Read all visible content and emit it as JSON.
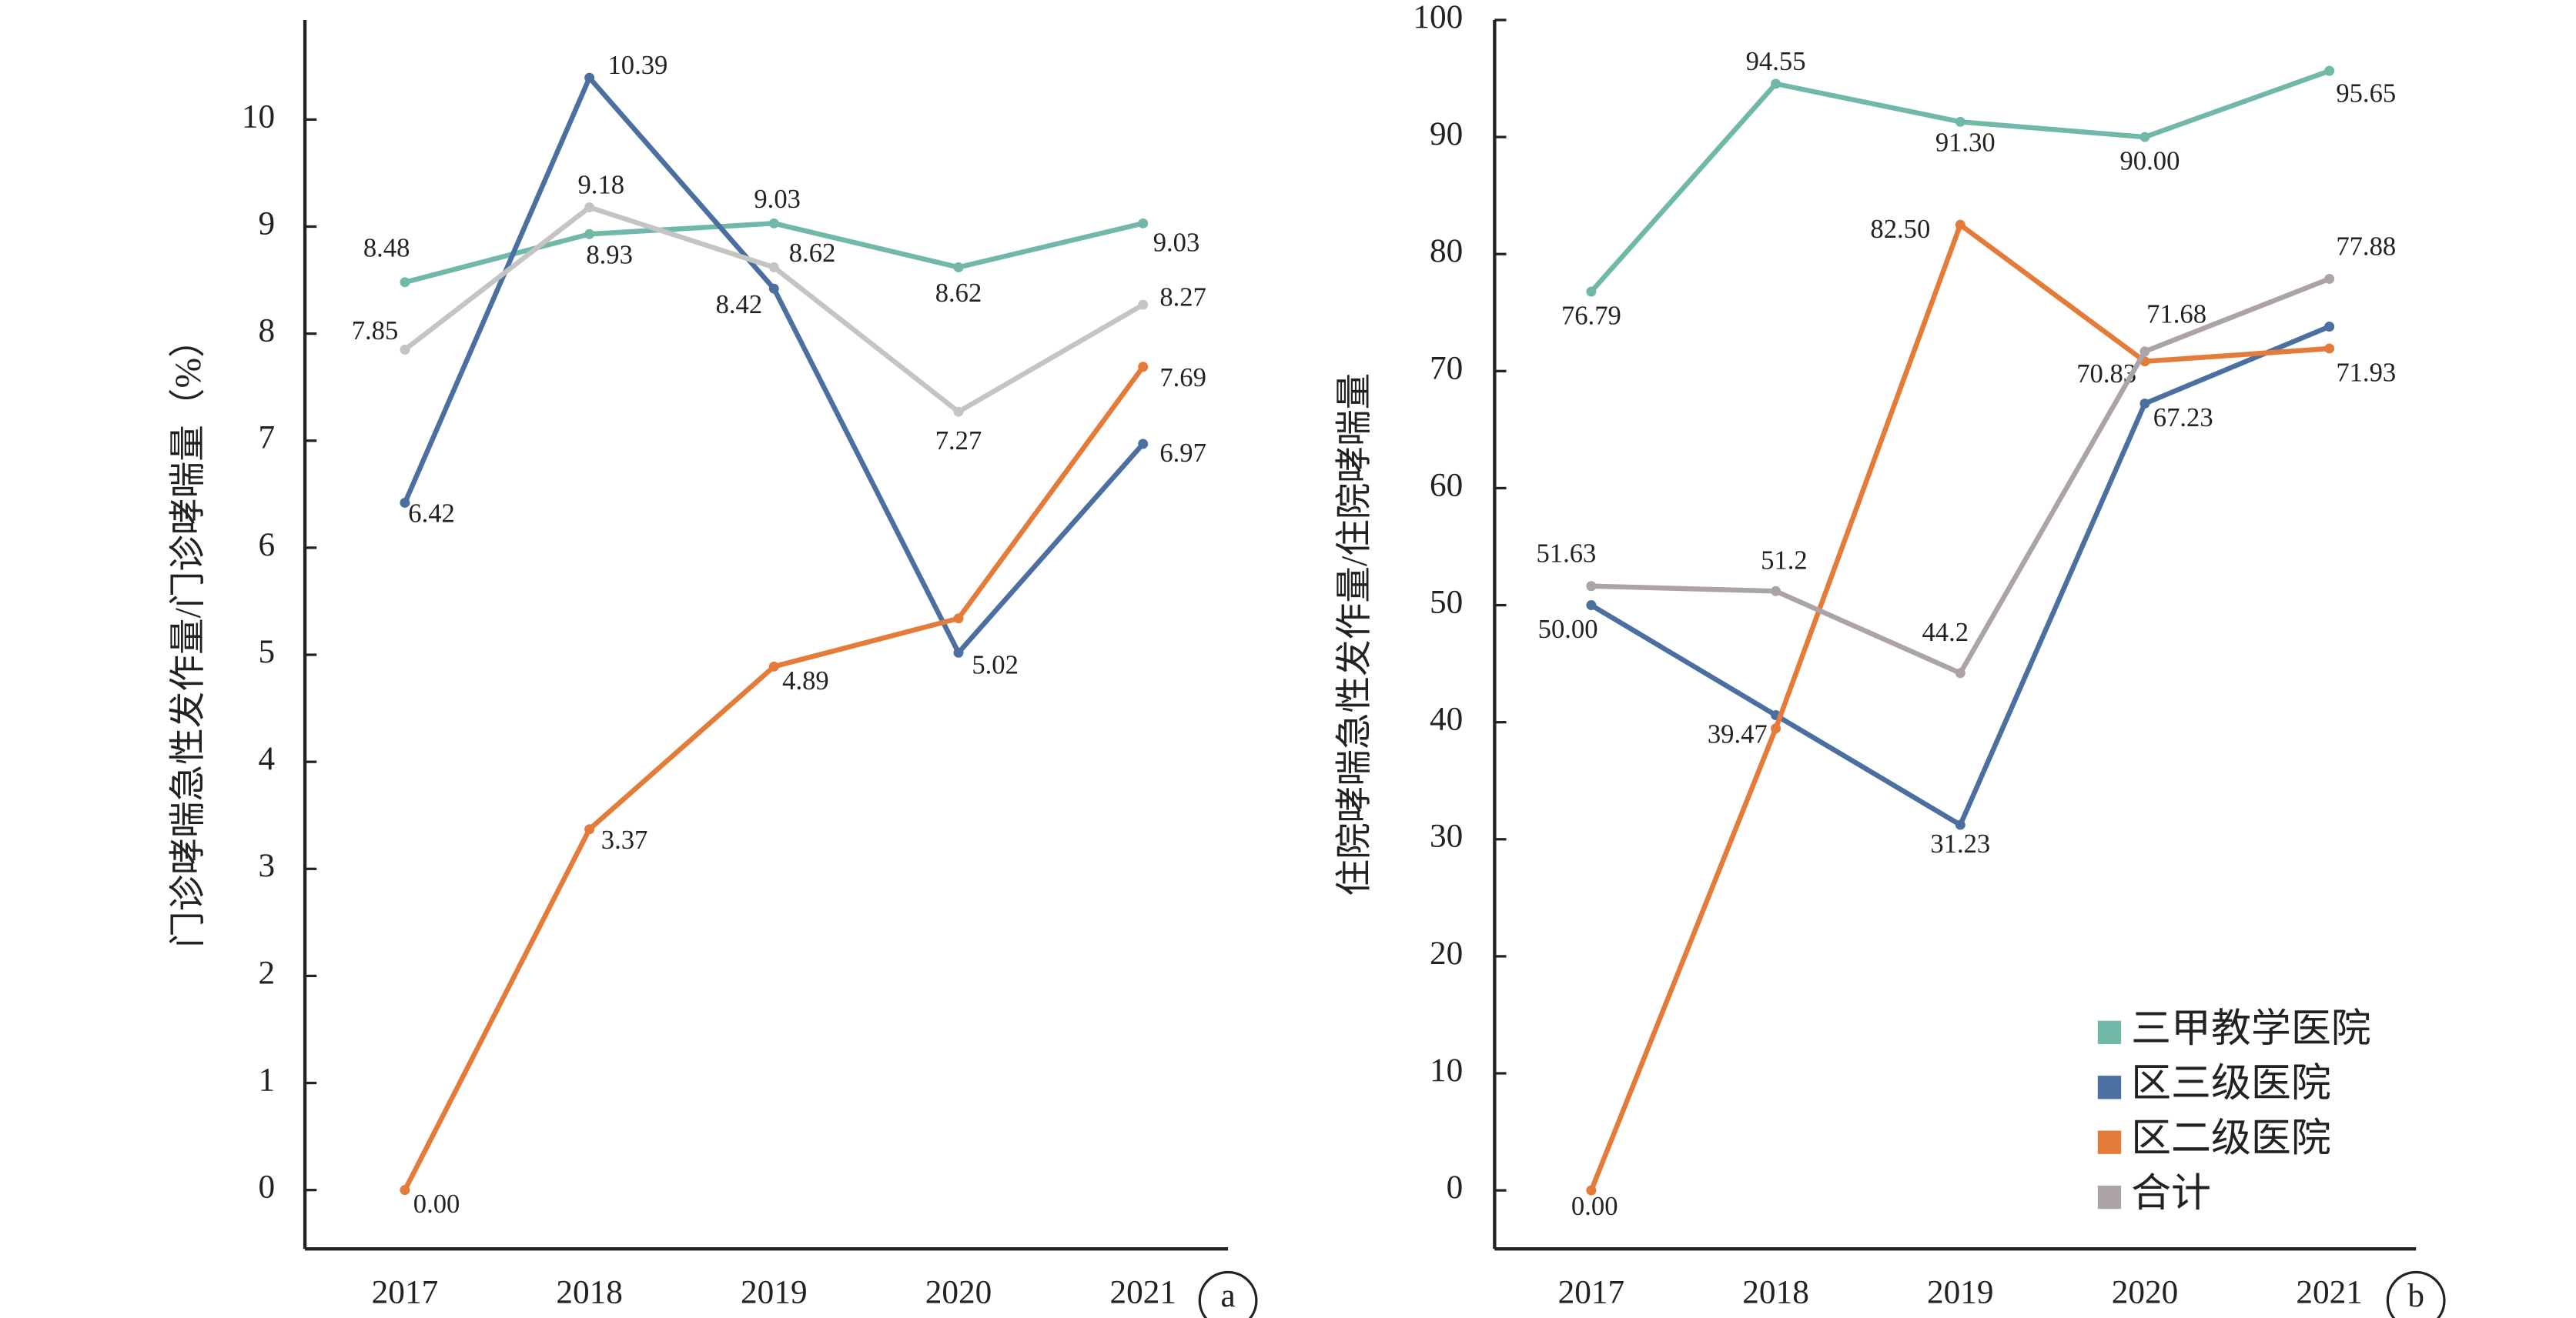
{
  "chart_data": [
    {
      "type": "line",
      "y_label": "门诊哮喘急性发作量/门诊哮喘量（%）",
      "panel_label": "a",
      "categories": [
        "2017",
        "2018",
        "2019",
        "2020",
        "2021"
      ],
      "ylim": [
        -0.55,
        10.93
      ],
      "yticks": [
        0,
        1,
        2,
        3,
        4,
        5,
        6,
        7,
        8,
        9,
        10
      ],
      "series": [
        {
          "color": "#72b8a9",
          "values": [
            8.48,
            8.93,
            9.03,
            8.62,
            9.03
          ]
        },
        {
          "color": "#4b6fa0",
          "values": [
            6.42,
            10.39,
            8.42,
            5.02,
            6.97
          ]
        },
        {
          "color": "#e47b39",
          "values": [
            0,
            3.37,
            4.89,
            5.34,
            7.69
          ],
          "value_labels": [
            "0.00",
            "3.37",
            "4.89",
            null,
            "7.69"
          ]
        },
        {
          "color": "#c4c4c4",
          "values": [
            7.85,
            9.18,
            8.62,
            7.27,
            8.27
          ]
        }
      ]
    },
    {
      "type": "line",
      "y_label": "住院哮喘急性发作量/住院哮喘量",
      "panel_label": "b",
      "categories": [
        "2017",
        "2018",
        "2019",
        "2020",
        "2021"
      ],
      "ylim": [
        -5,
        100
      ],
      "yticks": [
        0,
        10,
        20,
        30,
        40,
        50,
        60,
        70,
        80,
        90,
        100
      ],
      "legend": "lower right",
      "series": [
        {
          "name": "三甲教学医院",
          "color": "#72b8a9",
          "values": [
            76.79,
            94.55,
            91.3,
            90,
            95.65
          ],
          "value_labels": [
            "76.79",
            "94.55",
            "91.30",
            "90.00",
            "95.65"
          ]
        },
        {
          "name": "区三级医院",
          "color": "#4b6fa0",
          "values": [
            50,
            40.6,
            31.23,
            67.23,
            73.8
          ],
          "value_labels": [
            "50.00",
            null,
            "31.23",
            "67.23",
            null
          ]
        },
        {
          "name": "区二级医院",
          "color": "#e47b39",
          "values": [
            0,
            39.47,
            82.5,
            70.83,
            71.93
          ],
          "value_labels": [
            "0.00",
            "39.47",
            "82.50",
            "70.83",
            "71.93"
          ]
        },
        {
          "name": "合计",
          "color": "#aba3a8",
          "values": [
            51.63,
            51.2,
            44.2,
            71.68,
            77.88
          ]
        }
      ]
    }
  ]
}
